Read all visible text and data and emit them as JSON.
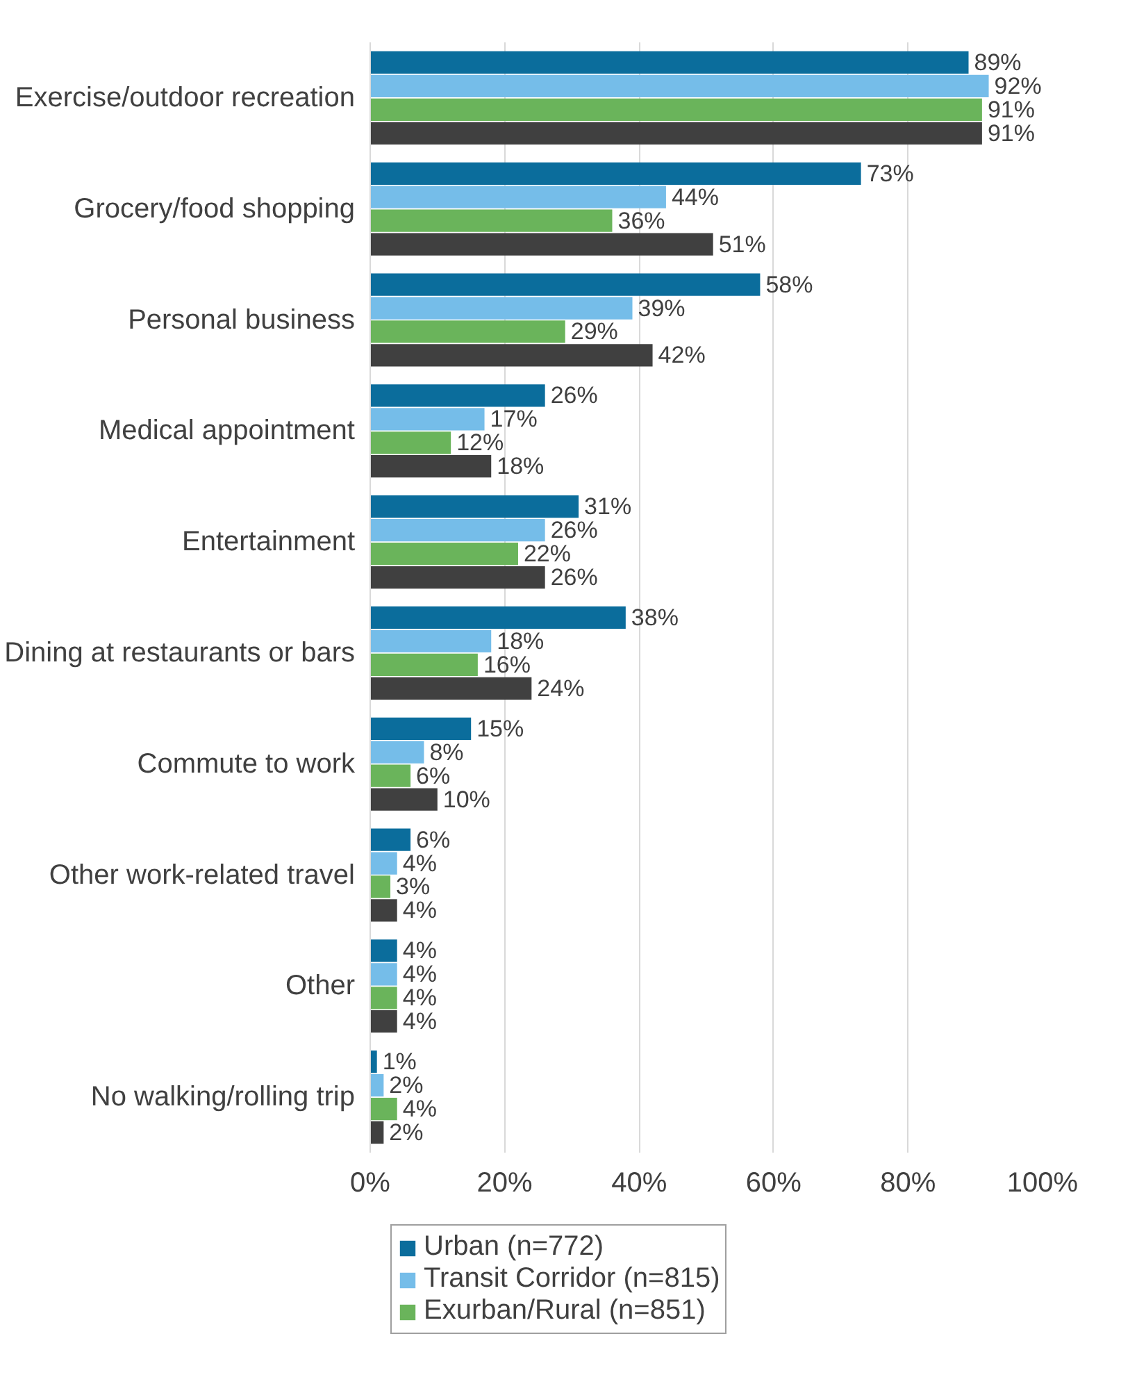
{
  "chart_data": {
    "type": "bar",
    "orientation": "horizontal",
    "categories": [
      "Exercise/outdoor recreation",
      "Grocery/food shopping",
      "Personal business",
      "Medical appointment",
      "Entertainment",
      "Dining at restaurants or bars",
      "Commute to work",
      "Other work-related travel",
      "Other",
      "No walking/rolling trip"
    ],
    "series": [
      {
        "name": "Urban (n=772)",
        "color": "#0b6d9c",
        "values": [
          89,
          73,
          58,
          26,
          31,
          38,
          15,
          6,
          4,
          1
        ],
        "value_labels": [
          "89%",
          "73%",
          "58%",
          "26%",
          "31%",
          "38%",
          "15%",
          "6%",
          "4%",
          "1%"
        ]
      },
      {
        "name": "Transit Corridor (n=815)",
        "color": "#75bde9",
        "values": [
          92,
          44,
          39,
          17,
          26,
          18,
          8,
          4,
          4,
          2
        ],
        "value_labels": [
          "92%",
          "44%",
          "39%",
          "17%",
          "26%",
          "18%",
          "8%",
          "4%",
          "4%",
          "2%"
        ]
      },
      {
        "name": "Exurban/Rural (n=851)",
        "color": "#6ab45b",
        "values": [
          91,
          36,
          29,
          12,
          22,
          16,
          6,
          3,
          4,
          4
        ],
        "value_labels": [
          "91%",
          "36%",
          "29%",
          "12%",
          "22%",
          "16%",
          "6%",
          "3%",
          "4%",
          "4%"
        ]
      },
      {
        "color": "#404040",
        "values": [
          91,
          51,
          42,
          18,
          26,
          24,
          10,
          4,
          4,
          2
        ],
        "value_labels": [
          "91%",
          "51%",
          "42%",
          "18%",
          "26%",
          "24%",
          "10%",
          "4%",
          "4%",
          "2%"
        ]
      }
    ],
    "xlim": [
      0,
      100
    ],
    "xticks": [
      {
        "value": 0,
        "label": "0%"
      },
      {
        "value": 20,
        "label": "20%"
      },
      {
        "value": 40,
        "label": "40%"
      },
      {
        "value": 60,
        "label": "60%"
      },
      {
        "value": 80,
        "label": "80%"
      },
      {
        "value": 100,
        "label": "100%"
      }
    ],
    "grid": "x",
    "legend": "bottom"
  }
}
